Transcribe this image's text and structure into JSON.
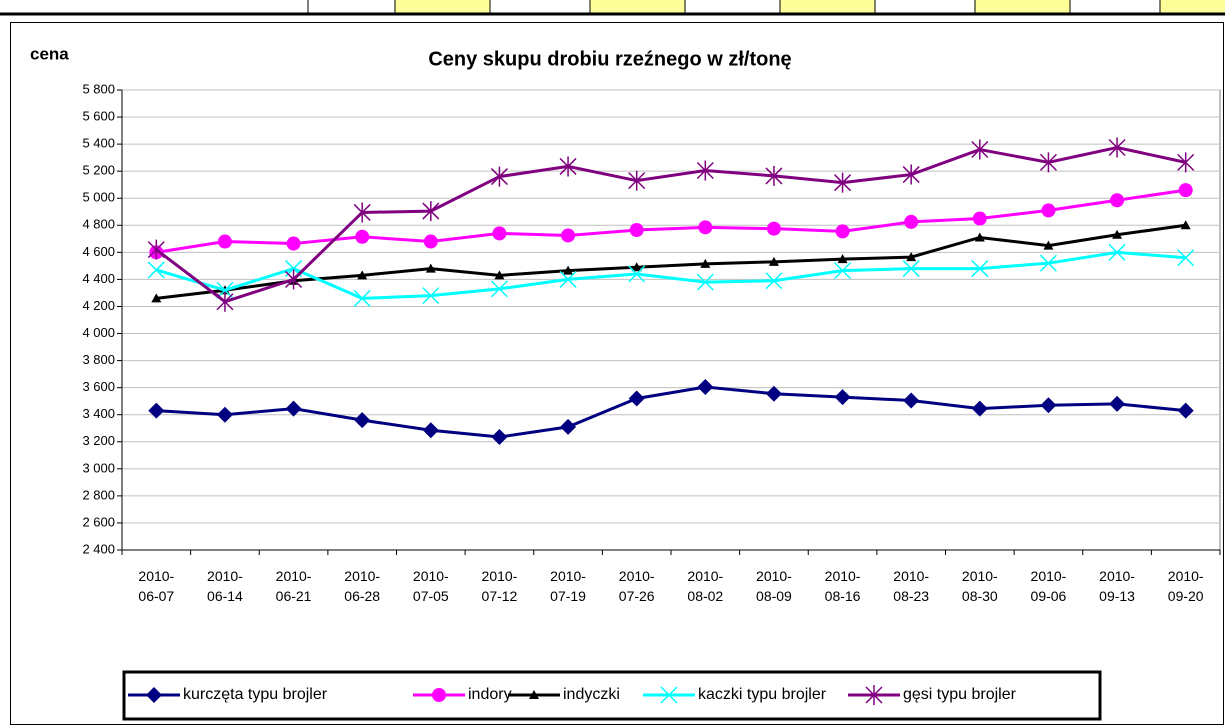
{
  "chart_data": {
    "type": "line",
    "title": "Ceny skupu drobiu rzeźnego w zł/tonę",
    "y_label": "cena",
    "categories": [
      "2010-\n06-07",
      "2010-\n06-14",
      "2010-\n06-21",
      "2010-\n06-28",
      "2010-\n07-05",
      "2010-\n07-12",
      "2010-\n07-19",
      "2010-\n07-26",
      "2010-\n08-02",
      "2010-\n08-09",
      "2010-\n08-16",
      "2010-\n08-23",
      "2010-\n08-30",
      "2010-\n09-06",
      "2010-\n09-13",
      "2010-\n09-20"
    ],
    "series": [
      {
        "name": "kurczęta typu brojler",
        "color": "#000080",
        "marker": "diamond",
        "values": [
          3430,
          3400,
          3445,
          3360,
          3285,
          3235,
          3310,
          3520,
          3605,
          3555,
          3530,
          3505,
          3445,
          3470,
          3480,
          3430
        ]
      },
      {
        "name": "indory",
        "color": "#ff00ff",
        "marker": "circle",
        "values": [
          4600,
          4680,
          4665,
          4715,
          4680,
          4740,
          4725,
          4765,
          4785,
          4775,
          4755,
          4825,
          4850,
          4910,
          4985,
          5060
        ]
      },
      {
        "name": "indyczki",
        "color": "#000000",
        "marker": "triangle",
        "values": [
          4260,
          4320,
          4390,
          4430,
          4480,
          4430,
          4465,
          4490,
          4515,
          4530,
          4550,
          4565,
          4710,
          4650,
          4730,
          4800
        ]
      },
      {
        "name": "kaczki typu brojler",
        "color": "#00ffff",
        "marker": "x",
        "values": [
          4470,
          4320,
          4480,
          4260,
          4280,
          4330,
          4400,
          4440,
          4380,
          4390,
          4465,
          4480,
          4480,
          4520,
          4600,
          4560
        ]
      },
      {
        "name": "gęsi typu brojler",
        "color": "#800080",
        "marker": "star",
        "values": [
          4620,
          4235,
          4400,
          4895,
          4905,
          5160,
          5235,
          5130,
          5205,
          5165,
          5115,
          5175,
          5360,
          5265,
          5375,
          5265
        ]
      }
    ],
    "ylim": [
      2400,
      5800
    ],
    "yticks": [
      {
        "value": 2400,
        "label": "2 400"
      },
      {
        "value": 2600,
        "label": "2 600"
      },
      {
        "value": 2800,
        "label": "2 800"
      },
      {
        "value": 3000,
        "label": "3 000"
      },
      {
        "value": 3200,
        "label": "3 200"
      },
      {
        "value": 3400,
        "label": "3 400"
      },
      {
        "value": 3600,
        "label": "3 600"
      },
      {
        "value": 3800,
        "label": "3 800"
      },
      {
        "value": 4000,
        "label": "4 000"
      },
      {
        "value": 4200,
        "label": "4 200"
      },
      {
        "value": 4400,
        "label": "4 400"
      },
      {
        "value": 4600,
        "label": "4 600"
      },
      {
        "value": 4800,
        "label": "4 800"
      },
      {
        "value": 5000,
        "label": "5 000"
      },
      {
        "value": 5200,
        "label": "5 200"
      },
      {
        "value": 5400,
        "label": "5 400"
      },
      {
        "value": 5600,
        "label": "5 600"
      },
      {
        "value": 5800,
        "label": "5 800"
      }
    ],
    "grid": true,
    "legend": "bottom"
  }
}
